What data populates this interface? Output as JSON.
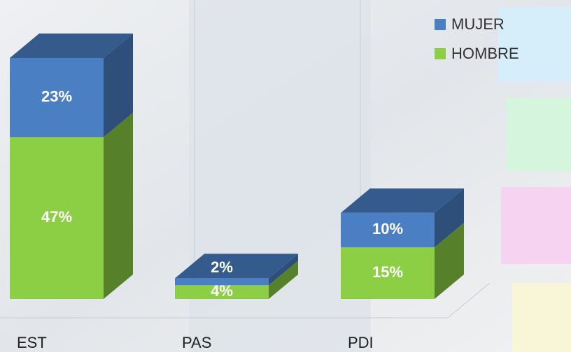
{
  "chart_data": {
    "type": "bar3d_stacked",
    "categories": [
      "EST",
      "PAS",
      "PDI"
    ],
    "series": [
      {
        "name": "MUJER",
        "color": "#4a7fc4",
        "values": [
          23,
          2,
          10
        ],
        "value_labels": [
          "23%",
          "2%",
          "10%"
        ]
      },
      {
        "name": "HOMBRE",
        "color": "#8ccf45",
        "values": [
          47,
          4,
          15
        ],
        "value_labels": [
          "47%",
          "4%",
          "15%"
        ]
      }
    ],
    "legend": "top-right"
  }
}
